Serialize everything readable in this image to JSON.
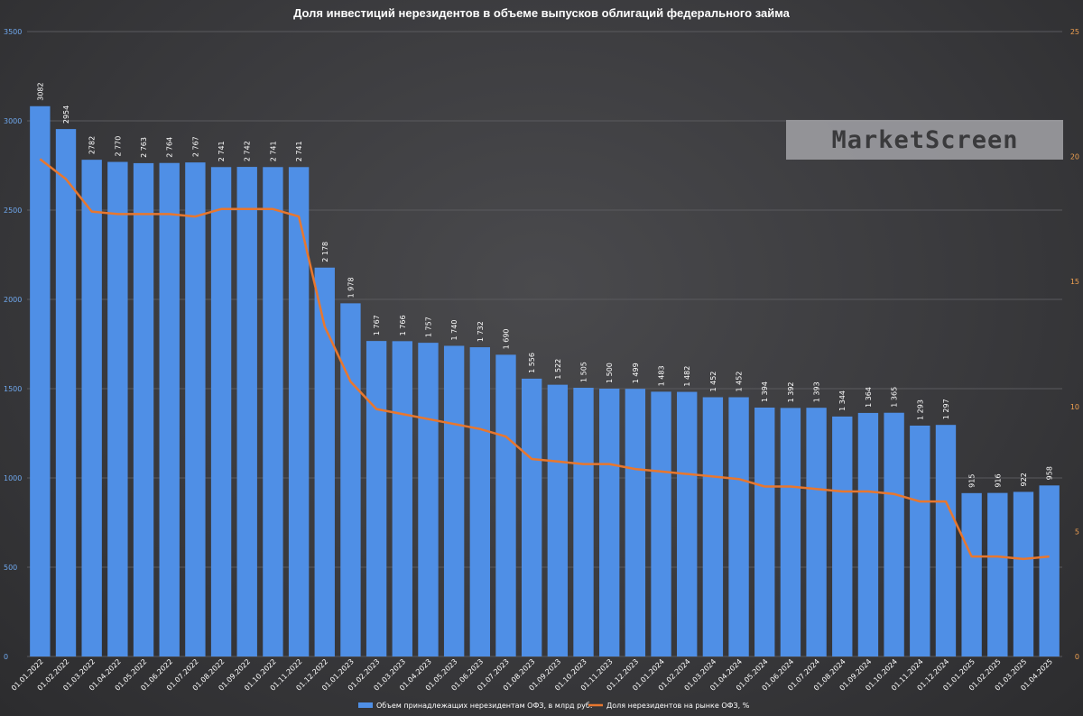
{
  "chart_data": {
    "type": "bar",
    "title": "Доля инвестиций нерезидентов в объеме выпусков облигаций федерального займа",
    "categories": [
      "01.01.2022",
      "01.02.2022",
      "01.03.2022",
      "01.04.2022",
      "01.05.2022",
      "01.06.2022",
      "01.07.2022",
      "01.08.2022",
      "01.09.2022",
      "01.10.2022",
      "01.11.2022",
      "01.12.2022",
      "01.01.2023",
      "01.02.2023",
      "01.03.2023",
      "01.04.2023",
      "01.05.2023",
      "01.06.2023",
      "01.07.2023",
      "01.08.2023",
      "01.09.2023",
      "01.10.2023",
      "01.11.2023",
      "01.12.2023",
      "01.01.2024",
      "01.02.2024",
      "01.03.2024",
      "01.04.2024",
      "01.05.2024",
      "01.06.2024",
      "01.07.2024",
      "01.08.2024",
      "01.09.2024",
      "01.10.2024",
      "01.11.2024",
      "01.12.2024",
      "01.01.2025",
      "01.02.2025",
      "01.03.2025",
      "01.04.2025"
    ],
    "series": [
      {
        "name": "Объем принадлежащих нерезидентам ОФЗ, в млрд руб.",
        "type": "bar",
        "axis": "left",
        "color": "#4f8fe6",
        "values": [
          3082,
          2954,
          2782,
          2770,
          2763,
          2764,
          2767,
          2741,
          2742,
          2741,
          2741,
          2178,
          1978,
          1767,
          1766,
          1757,
          1740,
          1732,
          1690,
          1556,
          1522,
          1505,
          1500,
          1499,
          1483,
          1482,
          1452,
          1452,
          1394,
          1392,
          1393,
          1344,
          1364,
          1365,
          1293,
          1297,
          915,
          916,
          922,
          958
        ],
        "labels": [
          "3082",
          "2954",
          "2782",
          "2 770",
          "2 763",
          "2 764",
          "2 767",
          "2 741",
          "2 742",
          "2 741",
          "2 741",
          "2 178",
          "1 978",
          "1 767",
          "1 766",
          "1 757",
          "1 740",
          "1 732",
          "1 690",
          "1 556",
          "1 522",
          "1 505",
          "1 500",
          "1 499",
          "1 483",
          "1 482",
          "1 452",
          "1 452",
          "1 394",
          "1 392",
          "1 393",
          "1 344",
          "1 364",
          "1 365",
          "1 293",
          "1 297",
          "915",
          "916",
          "922",
          "958"
        ]
      },
      {
        "name": "Доля нерезидентов на рынке ОФЗ, %",
        "type": "line",
        "axis": "right",
        "color": "#e8772e",
        "values": [
          19.9,
          19.1,
          17.8,
          17.7,
          17.7,
          17.7,
          17.6,
          17.9,
          17.9,
          17.9,
          17.6,
          13.2,
          11.0,
          9.9,
          9.7,
          9.5,
          9.3,
          9.1,
          8.8,
          7.9,
          7.8,
          7.7,
          7.7,
          7.5,
          7.4,
          7.3,
          7.2,
          7.1,
          6.8,
          6.8,
          6.7,
          6.6,
          6.6,
          6.5,
          6.2,
          6.2,
          4.0,
          4.0,
          3.9,
          4.0
        ]
      }
    ],
    "y_left": {
      "min": 0,
      "max": 3500,
      "ticks": [
        0,
        500,
        1000,
        1500,
        2000,
        2500,
        3000,
        3500
      ]
    },
    "y_right": {
      "min": 0,
      "max": 25,
      "ticks": [
        0,
        5,
        10,
        15,
        20,
        25
      ]
    },
    "grid": true,
    "legend_position": "bottom",
    "watermark": "MarketScreen"
  }
}
